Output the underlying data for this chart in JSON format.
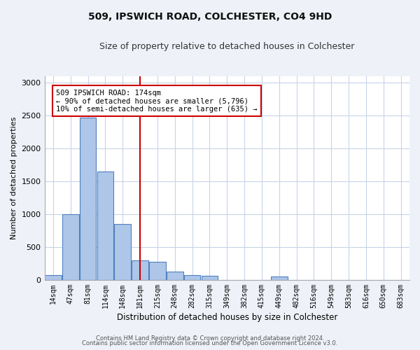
{
  "title1": "509, IPSWICH ROAD, COLCHESTER, CO4 9HD",
  "title2": "Size of property relative to detached houses in Colchester",
  "xlabel": "Distribution of detached houses by size in Colchester",
  "ylabel": "Number of detached properties",
  "categories": [
    "14sqm",
    "47sqm",
    "81sqm",
    "114sqm",
    "148sqm",
    "181sqm",
    "215sqm",
    "248sqm",
    "282sqm",
    "315sqm",
    "349sqm",
    "382sqm",
    "415sqm",
    "449sqm",
    "482sqm",
    "516sqm",
    "549sqm",
    "583sqm",
    "616sqm",
    "650sqm",
    "683sqm"
  ],
  "values": [
    75,
    1000,
    2470,
    1650,
    850,
    300,
    280,
    130,
    70,
    60,
    0,
    0,
    0,
    50,
    0,
    0,
    0,
    0,
    0,
    0,
    0
  ],
  "bar_color": "#aec6e8",
  "bar_edge_color": "#5080c0",
  "vline_x": 5.0,
  "vline_color": "#cc0000",
  "annotation_text": "509 IPSWICH ROAD: 174sqm\n← 90% of detached houses are smaller (5,796)\n10% of semi-detached houses are larger (635) →",
  "annotation_box_color": "#ffffff",
  "annotation_box_edge": "#cc0000",
  "ylim": [
    0,
    3100
  ],
  "yticks": [
    0,
    500,
    1000,
    1500,
    2000,
    2500,
    3000
  ],
  "footer1": "Contains HM Land Registry data © Crown copyright and database right 2024.",
  "footer2": "Contains public sector information licensed under the Open Government Licence v3.0.",
  "bg_color": "#eef2f8",
  "plot_bg_color": "#ffffff",
  "grid_color": "#c8d4e8"
}
